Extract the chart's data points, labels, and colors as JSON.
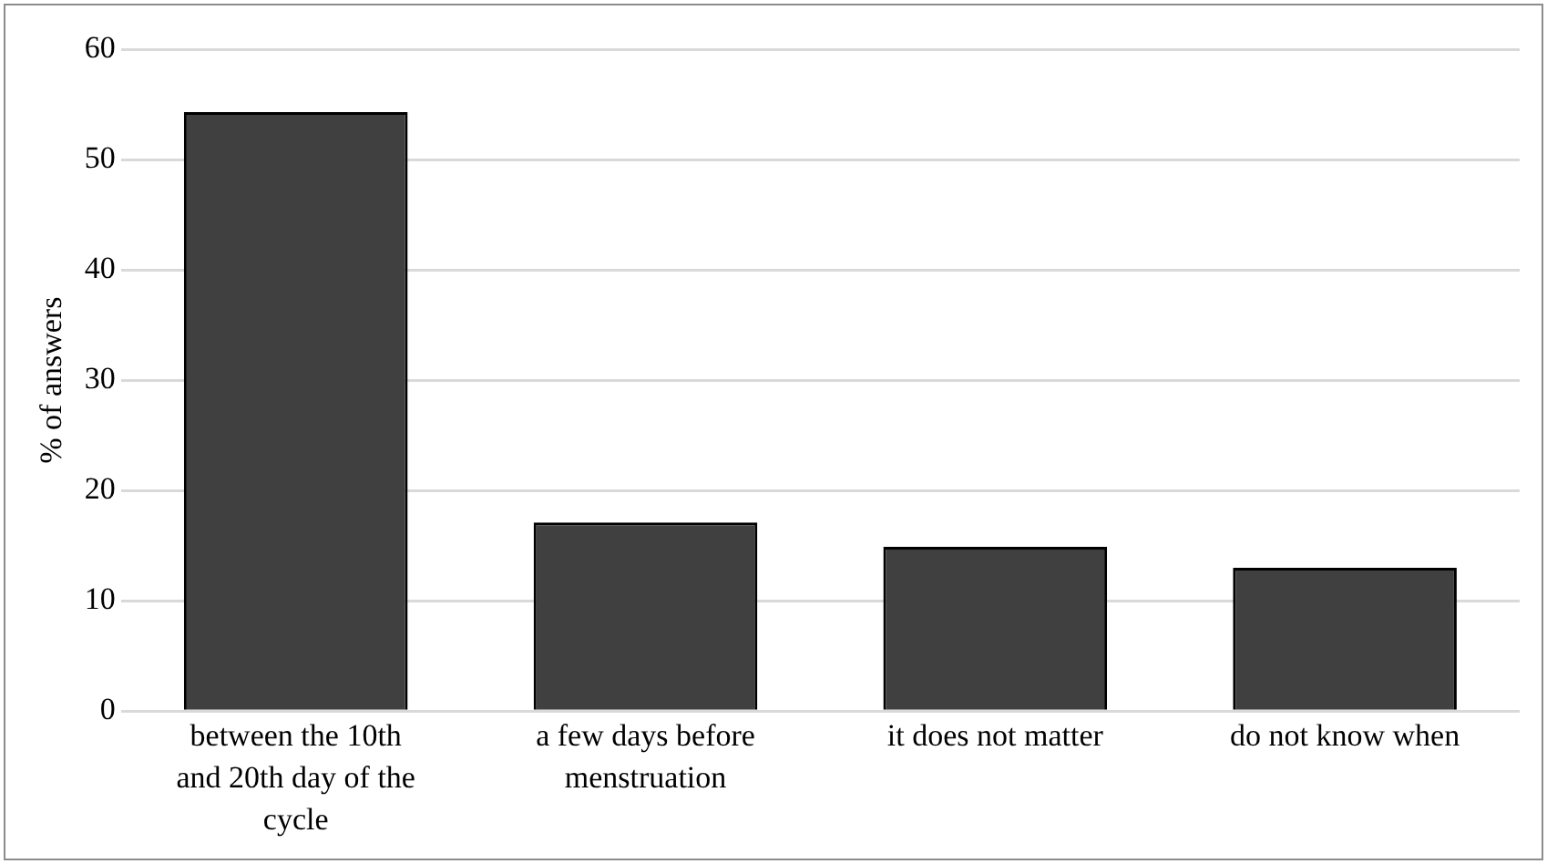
{
  "chart_data": {
    "type": "bar",
    "ylabel": "% of answers",
    "categories": [
      "between the 10th and 20th day of the cycle",
      "a few days before menstruation",
      "it does not matter",
      "do not know when"
    ],
    "values": [
      54.3,
      17.1,
      14.9,
      13.0
    ],
    "color": "#404040",
    "ylim": [
      0,
      60
    ],
    "yticks": [
      0,
      10,
      20,
      30,
      40,
      50,
      60
    ],
    "grid": "y"
  }
}
